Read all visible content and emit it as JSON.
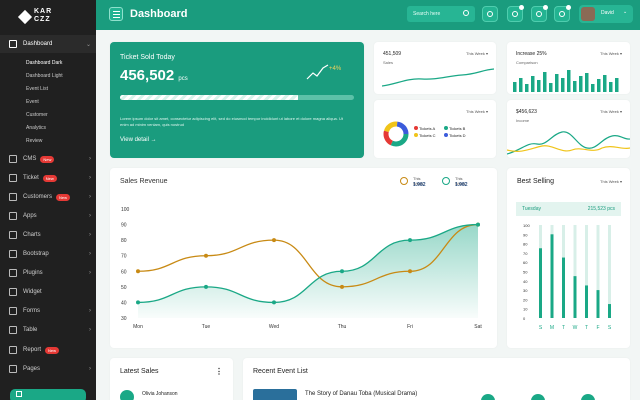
{
  "sidebar": {
    "logo": "KAR CZZ",
    "items": [
      {
        "label": "Dashboard",
        "top": 36
      },
      {
        "label": "CMS",
        "badge": "New"
      },
      {
        "label": "Ticket",
        "badge": "New"
      },
      {
        "label": "Customers",
        "badge": "New"
      },
      {
        "label": "Apps"
      },
      {
        "label": "Charts"
      },
      {
        "label": "Bootstrap"
      },
      {
        "label": "Plugins"
      },
      {
        "label": "Widget"
      },
      {
        "label": "Forms"
      },
      {
        "label": "Table"
      },
      {
        "label": "Report",
        "badge": "New"
      },
      {
        "label": "Pages"
      }
    ],
    "subitems": [
      "Dashboard Dark",
      "Dashboard Light",
      "Event List",
      "Event",
      "Customer",
      "Analytics",
      "Review"
    ]
  },
  "header": {
    "title": "Dashboard",
    "search_placeholder": "Search here",
    "user_name": "David"
  },
  "ticket": {
    "title": "Ticket Sold Today",
    "value": "456,502",
    "unit": "pcs",
    "change": "+4%",
    "progress": 0.76,
    "description": "Lorem ipsum dolor sit amet, consectetur adipiscing elit, sed do eiusmod tempor incididunt ut labore et dolore magna aliqua. Ut enim ad minim veniam, quis nostrud",
    "link": "View detail"
  },
  "stats": {
    "sales": {
      "value": "451,509",
      "label": "Sales",
      "week": "This Week"
    },
    "increase": {
      "value": "Increase 25%",
      "label": "Comparison",
      "week": "This Week"
    },
    "tickets": {
      "week": "This Week",
      "labels": [
        "Tickets A",
        "Tickets B",
        "Tickets C",
        "Tickets D"
      ]
    },
    "income": {
      "value": "$456,623",
      "label": "Income",
      "week": "This Week"
    }
  },
  "chart_data": {
    "type": "line",
    "title": "Sales Revenue",
    "categories": [
      "Mon",
      "Tue",
      "Wed",
      "Thu",
      "Fri",
      "Sat"
    ],
    "ylim": [
      30,
      100
    ],
    "yticks": [
      100,
      90,
      80,
      70,
      60,
      50,
      40,
      30
    ],
    "series": [
      {
        "name": "This Week",
        "total": "1.982",
        "color": "#c88a14",
        "values": [
          60,
          70,
          80,
          50,
          60,
          90
        ]
      },
      {
        "name": "This Week",
        "total": "1.982",
        "color": "#1aa886",
        "values": [
          40,
          50,
          40,
          60,
          80,
          90
        ]
      }
    ]
  },
  "best_selling": {
    "title": "Best Selling",
    "week": "This Week",
    "day": "Tuesday",
    "value": "215,523 pcs",
    "yticks": [
      "100",
      "90",
      "80",
      "70",
      "60",
      "50",
      "40",
      "30",
      "20",
      "10",
      "0"
    ],
    "days": [
      "S",
      "M",
      "T",
      "W",
      "T",
      "F",
      "S"
    ],
    "levels": [
      0.75,
      0.9,
      0.65,
      0.45,
      0.35,
      0.3,
      0.15
    ]
  },
  "bottom": {
    "latest_title": "Latest Sales",
    "latest_name": "Olivia Johanson",
    "events_title": "Recent Event List",
    "event_name": "The Story of Danau Toba (Musical Drama)"
  }
}
